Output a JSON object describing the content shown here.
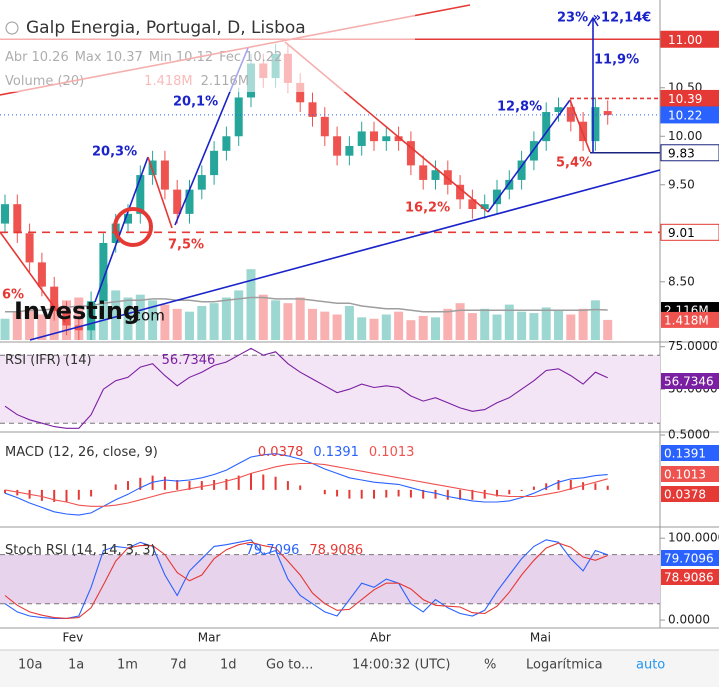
{
  "header": {
    "title": "Galp Energia, Portugal, D, Lisboa",
    "logo": [
      "Investing",
      ".com"
    ]
  },
  "chart_data": [
    {
      "type": "candlestick",
      "ohlc_labels": [
        "Abr",
        "Max",
        "Min",
        "Fec"
      ],
      "categories": [
        null,
        null,
        null,
        null,
        null,
        "Fev",
        null,
        null,
        null,
        null,
        null,
        null,
        null,
        null,
        null,
        null,
        "Mar",
        null,
        null,
        null,
        null,
        null,
        null,
        null,
        null,
        null,
        null,
        null,
        null,
        null,
        "Abr",
        null,
        null,
        null,
        null,
        null,
        null,
        null,
        null,
        null,
        null,
        null,
        null,
        "Mai",
        null,
        null,
        null,
        null,
        null,
        null
      ],
      "open": [
        9.1,
        9.3,
        9.0,
        8.7,
        8.45,
        8.2,
        8.05,
        8.0,
        8.3,
        8.9,
        9.1,
        9.2,
        9.6,
        9.75,
        9.45,
        9.2,
        9.45,
        9.6,
        9.85,
        10.0,
        10.4,
        10.75,
        10.6,
        10.85,
        10.55,
        10.35,
        10.2,
        10.0,
        9.8,
        9.9,
        10.05,
        9.95,
        10.0,
        9.95,
        9.7,
        9.55,
        9.65,
        9.5,
        9.35,
        9.25,
        9.3,
        9.45,
        9.55,
        9.75,
        9.95,
        10.25,
        10.3,
        10.15,
        9.95,
        10.26
      ],
      "high": [
        9.4,
        9.4,
        9.1,
        8.8,
        8.55,
        8.3,
        8.15,
        8.4,
        9.0,
        9.2,
        9.3,
        9.7,
        9.85,
        9.85,
        9.55,
        9.55,
        9.7,
        9.95,
        10.1,
        10.5,
        10.85,
        10.85,
        10.95,
        10.95,
        10.65,
        10.45,
        10.3,
        10.1,
        10.0,
        10.15,
        10.15,
        10.1,
        10.1,
        10.05,
        9.8,
        9.75,
        9.75,
        9.6,
        9.45,
        9.4,
        9.55,
        9.65,
        9.85,
        10.05,
        10.35,
        10.4,
        10.4,
        10.25,
        10.4,
        10.37
      ],
      "low": [
        9.0,
        8.9,
        8.6,
        8.35,
        8.1,
        7.95,
        7.9,
        7.9,
        8.2,
        8.8,
        9.0,
        9.1,
        9.5,
        9.35,
        9.1,
        9.1,
        9.35,
        9.5,
        9.75,
        9.9,
        10.3,
        10.5,
        10.5,
        10.45,
        10.25,
        10.1,
        9.9,
        9.7,
        9.7,
        9.8,
        9.85,
        9.85,
        9.85,
        9.6,
        9.45,
        9.45,
        9.4,
        9.25,
        9.15,
        9.15,
        9.2,
        9.35,
        9.45,
        9.65,
        9.85,
        10.15,
        10.05,
        9.85,
        9.85,
        10.12
      ],
      "close": [
        9.3,
        9.0,
        8.7,
        8.45,
        8.2,
        8.05,
        8.0,
        8.3,
        8.9,
        9.1,
        9.2,
        9.6,
        9.75,
        9.45,
        9.2,
        9.45,
        9.6,
        9.85,
        10.0,
        10.4,
        10.75,
        10.6,
        10.85,
        10.55,
        10.35,
        10.2,
        10.0,
        9.8,
        9.9,
        10.05,
        9.95,
        10.0,
        9.95,
        9.7,
        9.55,
        9.65,
        9.5,
        9.35,
        9.25,
        9.3,
        9.45,
        9.55,
        9.75,
        9.95,
        10.25,
        10.3,
        10.15,
        9.95,
        10.3,
        10.22
      ],
      "up_color": "#26a69a",
      "down_color": "#ef5350",
      "ylim": [
        7.9,
        11.25
      ],
      "yticks": [
        {
          "value": 8.5,
          "label": "8.50"
        },
        {
          "value": 9.5,
          "label": "9.50"
        },
        {
          "value": 10,
          "label": "10.00"
        },
        {
          "value": 10.5,
          "label": "10.50"
        }
      ],
      "levels": [
        {
          "value": 11,
          "label": "11.00",
          "color": "#e53935"
        },
        {
          "value": 10.39,
          "label": "10.39",
          "color": "#e53935"
        },
        {
          "value": 10.22,
          "label": "10.22",
          "color": "#2962ff"
        },
        {
          "value": 9.83,
          "label": "9.83",
          "color": "#1a237e"
        },
        {
          "value": 9.01,
          "label": "9.01",
          "color": "#e53935"
        }
      ],
      "annotations": [
        {
          "text": "6%",
          "color": "#e53935"
        },
        {
          "text": "20,3%",
          "color": "#1a23c9"
        },
        {
          "text": "7,5%",
          "color": "#e53935"
        },
        {
          "text": "20,1%",
          "color": "#1a23c9"
        },
        {
          "text": "16,2%",
          "color": "#e53935"
        },
        {
          "text": "12,8%",
          "color": "#1a23c9"
        },
        {
          "text": "5,4%",
          "color": "#e53935"
        },
        {
          "text": "11,9%",
          "color": "#1a23c9"
        },
        {
          "text": "23% »12,14€",
          "color": "#1a23c9"
        }
      ],
      "volume": {
        "title": "Volume (20)",
        "ylim": [
          0,
          6
        ],
        "values": [
          1.5,
          2.0,
          2.2,
          1.8,
          2.5,
          2.8,
          3.0,
          2.6,
          4.0,
          3.5,
          3.0,
          3.2,
          2.8,
          2.5,
          2.2,
          2.0,
          2.4,
          2.6,
          3.0,
          3.5,
          5.0,
          3.2,
          2.8,
          2.6,
          3.0,
          2.2,
          2.0,
          1.8,
          2.4,
          1.6,
          1.5,
          1.8,
          2.0,
          1.4,
          1.7,
          1.6,
          2.2,
          2.6,
          1.9,
          2.2,
          1.8,
          2.5,
          2.0,
          1.9,
          2.3,
          2.1,
          1.8,
          2.2,
          2.8,
          1.418
        ],
        "last_label": "1.418M",
        "ma_values": [
          2.0,
          2.0,
          2.1,
          2.1,
          2.2,
          2.3,
          2.4,
          2.4,
          2.6,
          2.7,
          2.8,
          2.8,
          2.9,
          2.9,
          2.8,
          2.8,
          2.7,
          2.7,
          2.8,
          2.9,
          3.0,
          3.0,
          2.9,
          2.9,
          2.9,
          2.8,
          2.7,
          2.6,
          2.6,
          2.4,
          2.3,
          2.2,
          2.2,
          2.1,
          2.0,
          2.0,
          2.0,
          2.1,
          2.1,
          2.1,
          2.1,
          2.1,
          2.1,
          2.1,
          2.1,
          2.1,
          2.1,
          2.1,
          2.15,
          2.116
        ],
        "ma_label": "2.116M",
        "ma_color": "#9e9e9e"
      }
    },
    {
      "type": "line",
      "title": "RSI (IFR) (14)",
      "ylim": [
        26,
        76
      ],
      "bands": [
        30,
        70
      ],
      "band_color": "#f3e5f5",
      "yticks": [
        {
          "value": 75,
          "label": "75.0000"
        },
        {
          "value": 50,
          "label": "50.0000"
        }
      ],
      "series": [
        {
          "color": "#7b1fa2",
          "values": [
            40,
            35,
            32,
            30,
            28,
            27,
            27,
            35,
            50,
            55,
            57,
            63,
            65,
            58,
            52,
            57,
            60,
            64,
            66,
            70,
            74,
            70,
            72,
            65,
            60,
            56,
            52,
            48,
            50,
            53,
            51,
            52,
            51,
            46,
            43,
            45,
            42,
            39,
            37,
            38,
            42,
            45,
            50,
            55,
            61,
            62,
            58,
            53,
            60,
            56.7346
          ]
        }
      ]
    },
    {
      "type": "macd",
      "title": "MACD (12, 26, close, 9)",
      "ylim": [
        -0.32,
        0.5
      ],
      "yticks": [
        {
          "value": 0.5,
          "label": "0.5000"
        }
      ],
      "series": [
        {
          "kind": "bar",
          "color": "#e53935",
          "values": [
            -0.03,
            -0.05,
            -0.08,
            -0.1,
            -0.11,
            -0.11,
            -0.09,
            -0.06,
            0.0,
            0.05,
            0.08,
            0.11,
            0.13,
            0.12,
            0.09,
            0.08,
            0.08,
            0.09,
            0.1,
            0.13,
            0.15,
            0.14,
            0.12,
            0.08,
            0.04,
            0.0,
            -0.04,
            -0.06,
            -0.08,
            -0.08,
            -0.08,
            -0.07,
            -0.06,
            -0.07,
            -0.08,
            -0.08,
            -0.09,
            -0.09,
            -0.09,
            -0.08,
            -0.06,
            -0.04,
            -0.01,
            0.03,
            0.06,
            0.09,
            0.09,
            0.07,
            0.06,
            0.0378
          ]
        },
        {
          "kind": "line",
          "color": "#2962ff",
          "values": [
            -0.03,
            -0.07,
            -0.12,
            -0.16,
            -0.2,
            -0.22,
            -0.23,
            -0.21,
            -0.15,
            -0.09,
            -0.04,
            0.02,
            0.07,
            0.09,
            0.08,
            0.09,
            0.11,
            0.14,
            0.18,
            0.24,
            0.3,
            0.32,
            0.33,
            0.31,
            0.28,
            0.24,
            0.19,
            0.15,
            0.11,
            0.09,
            0.07,
            0.06,
            0.05,
            0.02,
            -0.01,
            -0.03,
            -0.06,
            -0.08,
            -0.1,
            -0.11,
            -0.11,
            -0.1,
            -0.07,
            -0.03,
            0.02,
            0.07,
            0.1,
            0.11,
            0.13,
            0.1391
          ]
        },
        {
          "kind": "line",
          "color": "#ef5350",
          "values": [
            0.0,
            -0.02,
            -0.04,
            -0.06,
            -0.09,
            -0.11,
            -0.14,
            -0.15,
            -0.15,
            -0.14,
            -0.12,
            -0.09,
            -0.06,
            -0.03,
            -0.01,
            0.01,
            0.03,
            0.05,
            0.08,
            0.11,
            0.15,
            0.18,
            0.21,
            0.23,
            0.24,
            0.24,
            0.23,
            0.21,
            0.19,
            0.17,
            0.15,
            0.13,
            0.11,
            0.09,
            0.07,
            0.05,
            0.03,
            0.01,
            -0.01,
            -0.03,
            -0.05,
            -0.06,
            -0.06,
            -0.06,
            -0.04,
            -0.02,
            0.01,
            0.04,
            0.07,
            0.1013
          ]
        }
      ]
    },
    {
      "type": "line",
      "title": "Stoch RSI (14, 14, 3, 3)",
      "ylim": [
        -6,
        110
      ],
      "bands": [
        20,
        80
      ],
      "band_color": "#e8d3ec",
      "yticks": [
        {
          "value": 100,
          "label": "100.0000"
        },
        {
          "value": 0,
          "label": "0.0000"
        }
      ],
      "series": [
        {
          "color": "#2962ff",
          "values": [
            20,
            10,
            5,
            3,
            2,
            2,
            5,
            40,
            85,
            90,
            88,
            95,
            90,
            55,
            30,
            60,
            75,
            90,
            92,
            95,
            98,
            80,
            85,
            50,
            30,
            20,
            10,
            5,
            25,
            45,
            40,
            50,
            45,
            20,
            10,
            25,
            15,
            8,
            5,
            12,
            35,
            55,
            75,
            90,
            98,
            95,
            75,
            60,
            85,
            79.7096
          ]
        },
        {
          "color": "#e53935",
          "values": [
            30,
            18,
            10,
            6,
            3,
            2,
            3,
            15,
            43,
            72,
            88,
            91,
            91,
            80,
            58,
            48,
            55,
            75,
            86,
            92,
            95,
            91,
            88,
            72,
            55,
            33,
            20,
            12,
            13,
            25,
            37,
            45,
            45,
            38,
            25,
            18,
            17,
            16,
            9,
            8,
            17,
            34,
            55,
            73,
            88,
            94,
            89,
            77,
            73,
            78.9086
          ]
        }
      ]
    }
  ],
  "toolbar": [
    "10a",
    "1a",
    "1m",
    "7d",
    "1d",
    "Go to...",
    "14:00:32 (UTC)",
    "%",
    "Logarítmica",
    "auto"
  ]
}
